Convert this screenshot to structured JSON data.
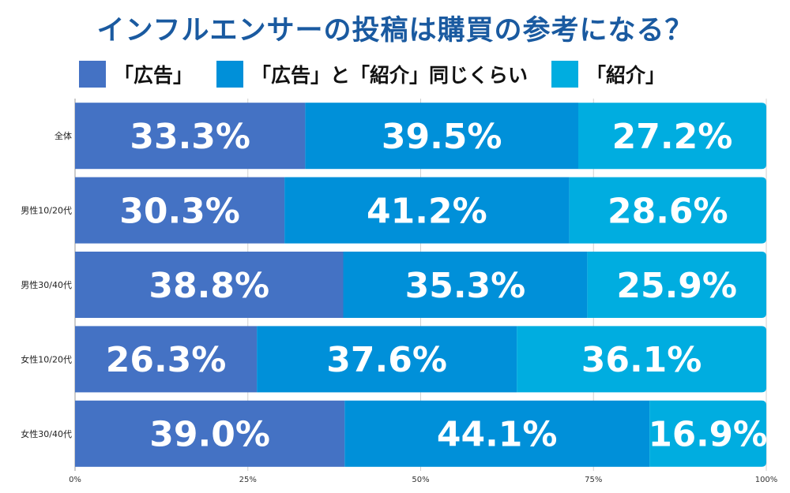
{
  "header": {
    "title": "インフルエンサーの投稿は購買の参考になる？"
  },
  "chart_data": {
    "type": "bar",
    "orientation": "horizontal",
    "stacked": true,
    "title": "インフルエンサーの投稿は購買の参考になる？",
    "legend_position": "top",
    "grid": true,
    "xlim": [
      0,
      100
    ],
    "x_ticks": [
      "0%",
      "25%",
      "50%",
      "75%",
      "100%"
    ],
    "categories": [
      "全体",
      "男性10/20代",
      "男性30/40代",
      "女性10/20代",
      "女性30/40代"
    ],
    "series": [
      {
        "name": "「広告」",
        "color": "#4472c4",
        "values": [
          33.3,
          30.3,
          38.8,
          26.3,
          39.0
        ]
      },
      {
        "name": "「広告」と「紹介」同じくらい",
        "color": "#0090d9",
        "values": [
          39.5,
          41.2,
          35.3,
          37.6,
          44.1
        ]
      },
      {
        "name": "「紹介」",
        "color": "#00ade0",
        "values": [
          27.2,
          28.6,
          25.9,
          36.1,
          16.9
        ]
      }
    ]
  }
}
